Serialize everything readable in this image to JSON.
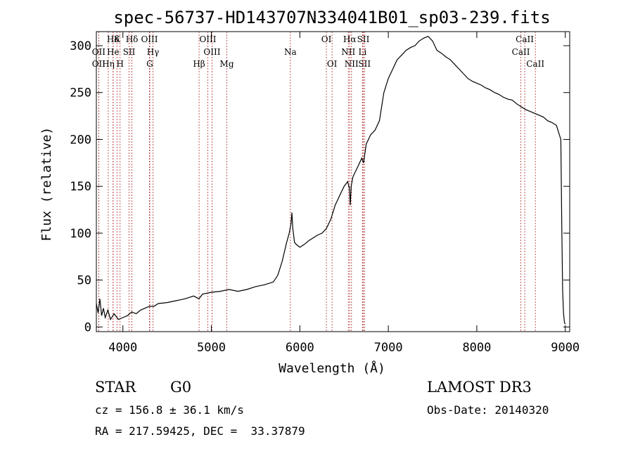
{
  "chart_data": {
    "type": "line",
    "title": "spec-56737-HD143707N334041B01_sp03-239.fits",
    "xlabel": "Wavelength (Å)",
    "ylabel": "Flux (relative)",
    "xlim": [
      3700,
      9050
    ],
    "ylim": [
      -5,
      315
    ],
    "xticks": [
      4000,
      5000,
      6000,
      7000,
      8000,
      9000
    ],
    "yticks": [
      0,
      50,
      100,
      150,
      200,
      250,
      300
    ],
    "series": [
      {
        "name": "flux",
        "x": [
          3700,
          3720,
          3740,
          3760,
          3780,
          3800,
          3830,
          3860,
          3900,
          3950,
          4000,
          4050,
          4100,
          4150,
          4200,
          4250,
          4300,
          4350,
          4400,
          4500,
          4600,
          4700,
          4800,
          4860,
          4900,
          5000,
          5100,
          5200,
          5300,
          5400,
          5500,
          5600,
          5700,
          5750,
          5800,
          5850,
          5880,
          5900,
          5910,
          5920,
          5940,
          5960,
          6000,
          6050,
          6100,
          6150,
          6200,
          6250,
          6300,
          6350,
          6400,
          6450,
          6500,
          6540,
          6560,
          6570,
          6580,
          6600,
          6650,
          6700,
          6720,
          6750,
          6800,
          6850,
          6900,
          6950,
          7000,
          7050,
          7100,
          7150,
          7200,
          7250,
          7300,
          7350,
          7400,
          7450,
          7500,
          7550,
          7600,
          7650,
          7700,
          7750,
          7800,
          7850,
          7900,
          7950,
          8000,
          8050,
          8100,
          8150,
          8200,
          8250,
          8300,
          8350,
          8400,
          8450,
          8500,
          8550,
          8600,
          8650,
          8700,
          8750,
          8800,
          8850,
          8900,
          8950,
          8960,
          8970,
          8980,
          8990,
          9000
        ],
        "values": [
          25,
          15,
          30,
          12,
          20,
          10,
          18,
          8,
          14,
          8,
          10,
          12,
          16,
          14,
          18,
          20,
          22,
          22,
          25,
          26,
          28,
          30,
          33,
          30,
          35,
          37,
          38,
          40,
          38,
          40,
          43,
          45,
          48,
          55,
          70,
          90,
          100,
          110,
          122,
          105,
          90,
          88,
          85,
          88,
          92,
          95,
          98,
          100,
          105,
          115,
          130,
          140,
          150,
          155,
          148,
          130,
          150,
          160,
          170,
          180,
          175,
          195,
          205,
          210,
          220,
          250,
          265,
          275,
          285,
          290,
          295,
          298,
          300,
          305,
          308,
          310,
          305,
          295,
          292,
          288,
          285,
          280,
          275,
          270,
          265,
          262,
          260,
          258,
          255,
          253,
          250,
          248,
          245,
          243,
          242,
          238,
          235,
          232,
          230,
          228,
          226,
          224,
          220,
          218,
          215,
          200,
          110,
          40,
          15,
          5,
          3
        ]
      }
    ],
    "line_markers": [
      {
        "wl": 3889,
        "label": "Hδ",
        "row": 0
      },
      {
        "wl": 3933,
        "label": "K",
        "row": 0
      },
      {
        "wl": 4102,
        "label": "Hδ",
        "row": 0
      },
      {
        "wl": 4300,
        "label": "OIII",
        "row": 0
      },
      {
        "wl": 4960,
        "label": "OIII",
        "row": 0
      },
      {
        "wl": 6300,
        "label": "OI",
        "row": 0
      },
      {
        "wl": 6563,
        "label": "Hα",
        "row": 0
      },
      {
        "wl": 6717,
        "label": "SII",
        "row": 0
      },
      {
        "wl": 8542,
        "label": "CaII",
        "row": 0
      },
      {
        "wl": 3727,
        "label": "OII",
        "row": 1
      },
      {
        "wl": 3889,
        "label": "He",
        "row": 1
      },
      {
        "wl": 4070,
        "label": "SII",
        "row": 1
      },
      {
        "wl": 4340,
        "label": "Hγ",
        "row": 1
      },
      {
        "wl": 5007,
        "label": "OIII",
        "row": 1
      },
      {
        "wl": 5893,
        "label": "Na",
        "row": 1
      },
      {
        "wl": 6548,
        "label": "NII",
        "row": 1
      },
      {
        "wl": 6708,
        "label": "Li",
        "row": 1
      },
      {
        "wl": 8498,
        "label": "CaII",
        "row": 1
      },
      {
        "wl": 3727,
        "label": "OII",
        "row": 2
      },
      {
        "wl": 3835,
        "label": "Hη",
        "row": 2
      },
      {
        "wl": 3968,
        "label": "H",
        "row": 2
      },
      {
        "wl": 4304,
        "label": "G",
        "row": 2
      },
      {
        "wl": 4861,
        "label": "Hβ",
        "row": 2
      },
      {
        "wl": 5175,
        "label": "Mg",
        "row": 2
      },
      {
        "wl": 6364,
        "label": "OI",
        "row": 2
      },
      {
        "wl": 6584,
        "label": "NII",
        "row": 2
      },
      {
        "wl": 6731,
        "label": "SII",
        "row": 2
      },
      {
        "wl": 8662,
        "label": "CaII",
        "row": 2
      }
    ],
    "marker_color": "#b03030"
  },
  "info": {
    "class_label": "STAR",
    "subclass": "G0",
    "survey": "LAMOST DR3",
    "cz": "cz = 156.8 ± 36.1 km/s",
    "obs_date": "Obs-Date: 20140320",
    "coords": "RA = 217.59425, DEC =  33.37879"
  }
}
